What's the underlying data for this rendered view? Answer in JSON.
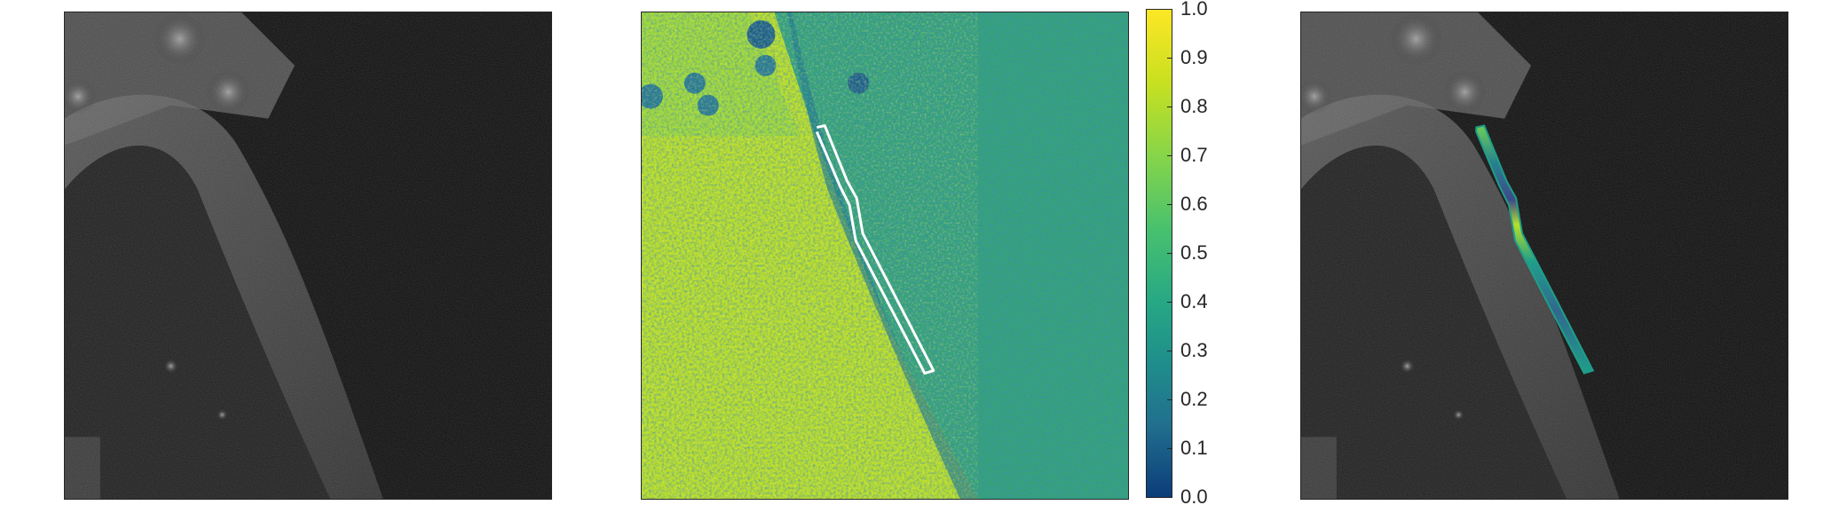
{
  "colorbar": {
    "ticks": [
      "1.0",
      "0.9",
      "0.8",
      "0.7",
      "0.6",
      "0.5",
      "0.4",
      "0.3",
      "0.2",
      "0.1",
      "0.0"
    ],
    "range": [
      0.0,
      1.0
    ],
    "colormap": [
      "#fde725",
      "#b5de2b",
      "#6ece58",
      "#35b779",
      "#1f9e89",
      "#26828e",
      "#31688e",
      "#3e4989",
      "#482878",
      "#0b3d7a"
    ]
  },
  "panels": {
    "left": {
      "kind": "grayscale fluorescence micrograph"
    },
    "middle": {
      "kind": "false-color ratio map with outlined ROI"
    },
    "right": {
      "kind": "grayscale micrograph with color-coded ROI overlay"
    }
  }
}
